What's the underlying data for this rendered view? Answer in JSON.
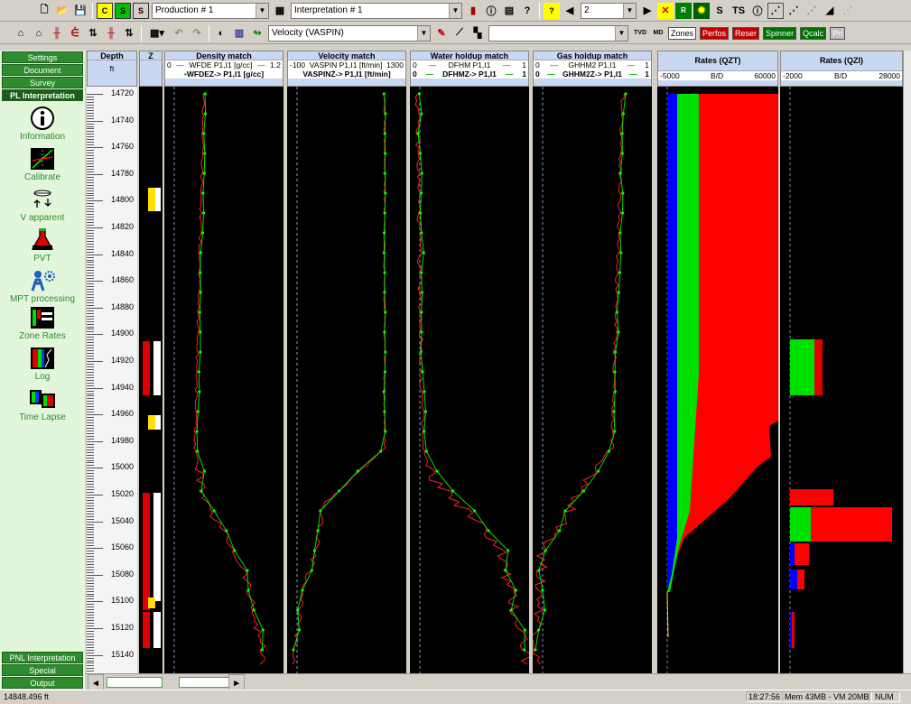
{
  "toolbar1": {
    "production_combo": "Production # 1",
    "interpretation_combo": "Interpretation # 1",
    "nav_value": "2",
    "s_label": "S",
    "ts_label": "TS"
  },
  "toolbar2": {
    "channel_combo": "Velocity (VASPIN)",
    "tvd_label": "TVD",
    "md_label": "MD",
    "zones_label": "Zones",
    "perfos_label": "Perfos",
    "reser_label": "Reser",
    "spinner_label": "Spinner",
    "qcalc_label": "Qcalc",
    "pri_label": "Pri"
  },
  "sidebar": {
    "top_sections": [
      "Settings",
      "Document",
      "Survey",
      "PL Interpretation"
    ],
    "items": [
      {
        "label": "Information",
        "icon": "info-icon"
      },
      {
        "label": "Calibrate",
        "icon": "calibrate-icon"
      },
      {
        "label": "V apparent",
        "icon": "spinner-tool-icon"
      },
      {
        "label": "PVT",
        "icon": "flask-icon"
      },
      {
        "label": "MPT processing",
        "icon": "mpt-icon"
      },
      {
        "label": "Zone Rates",
        "icon": "zone-rates-icon"
      },
      {
        "label": "Log",
        "icon": "log-icon"
      },
      {
        "label": "Time Lapse",
        "icon": "time-lapse-icon"
      }
    ],
    "bottom_sections": [
      "PNL Interpretation",
      "Special",
      "Output"
    ]
  },
  "tracks": {
    "depth": {
      "title": "Depth",
      "unit": "ft",
      "ticks": [
        "14720",
        "14740",
        "14760",
        "14780",
        "14800",
        "14820",
        "14840",
        "14860",
        "14880",
        "14900",
        "14920",
        "14940",
        "14960",
        "14980",
        "15000",
        "15020",
        "15040",
        "15060",
        "15080",
        "15100",
        "15120",
        "15140"
      ]
    },
    "z": {
      "title": "Z"
    },
    "density": {
      "title": "Density match",
      "line1_min": "0",
      "line1_label": "WFDE  P1,I1 [g/cc]",
      "line1_max": "1.2",
      "line2_label": "WFDEZ->  P1,I1 [g/cc]"
    },
    "velocity": {
      "title": "Velocity match",
      "line1_min": "-100",
      "line1_label": "VASPIN  P1,I1 [ft/min]",
      "line1_max": "1300",
      "line2_label": "VASPINZ->  P1,I1 [ft/min]"
    },
    "water": {
      "title": "Water holdup match",
      "line1_min": "0",
      "line1_label": "DFHM  P1,I1",
      "line1_max": "1",
      "line2_min": "0",
      "line2_label": "DFHMZ->  P1,I1",
      "line2_max": "1"
    },
    "gas": {
      "title": "Gas holdup match",
      "line1_min": "0",
      "line1_label": "GHHM2  P1,I1",
      "line1_max": "1",
      "line2_min": "0",
      "line2_label": "GHHM2Z->  P1,I1",
      "line2_max": "1"
    },
    "rates_qzt": {
      "title": "Rates (QZT)",
      "min": "-5000",
      "unit": "B/D",
      "max": "60000"
    },
    "rates_qzi": {
      "title": "Rates (QZI)",
      "min": "-2000",
      "unit": "B/D",
      "max": "28000"
    }
  },
  "status": {
    "depth_readout": "14848.496 ft",
    "time": "18:27:56",
    "memory": "Mem 43MB - VM 20MB",
    "num": "NUM"
  },
  "colors": {
    "water": "#0000ff",
    "gas": "#ff0000",
    "oil": "#00e000",
    "sidebar_green": "#2e8b2e"
  }
}
